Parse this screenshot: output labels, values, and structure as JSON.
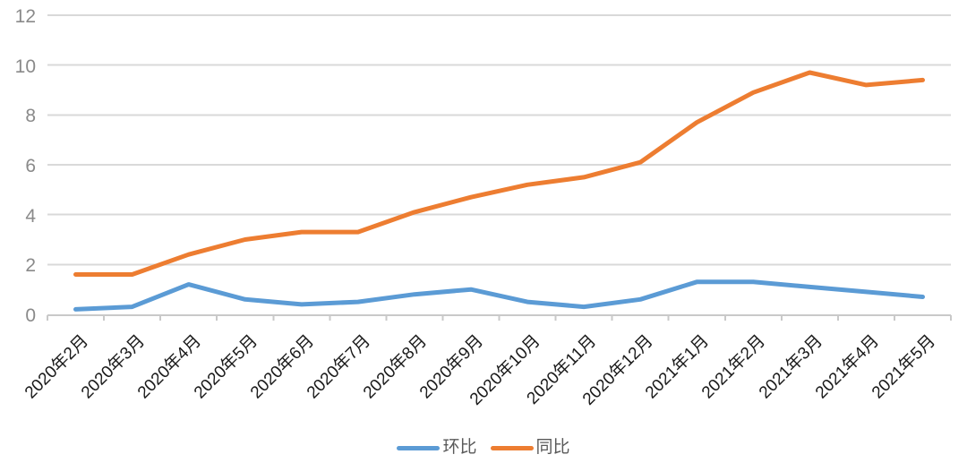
{
  "chart_data": {
    "type": "line",
    "categories": [
      "2020年2月",
      "2020年3月",
      "2020年4月",
      "2020年5月",
      "2020年6月",
      "2020年7月",
      "2020年8月",
      "2020年9月",
      "2020年10月",
      "2020年11月",
      "2020年12月",
      "2021年1月",
      "2021年2月",
      "2021年3月",
      "2021年4月",
      "2021年5月"
    ],
    "series": [
      {
        "name": "环比",
        "color": "#5B9BD5",
        "values": [
          0.2,
          0.3,
          1.2,
          0.6,
          0.4,
          0.5,
          0.8,
          1.0,
          0.5,
          0.3,
          0.6,
          1.3,
          1.3,
          1.1,
          0.9,
          0.7
        ]
      },
      {
        "name": "同比",
        "color": "#ED7D31",
        "values": [
          1.6,
          1.6,
          2.4,
          3.0,
          3.3,
          3.3,
          4.1,
          4.7,
          5.2,
          5.5,
          6.1,
          7.7,
          8.9,
          9.7,
          9.2,
          9.4
        ]
      }
    ],
    "title": "",
    "xlabel": "",
    "ylabel": "",
    "ylim": [
      0,
      12
    ],
    "yticks": [
      0,
      2,
      4,
      6,
      8,
      10,
      12
    ],
    "grid": "horizontal",
    "legend_position": "bottom-center",
    "colors": {
      "background": "#FFFFFF",
      "gridline": "#D9D9D9",
      "axis_line": "#C9C9C9",
      "y_tick_label": "#8A8A8A",
      "x_tick_label": "#1A1A1A",
      "legend_text": "#595959"
    }
  }
}
